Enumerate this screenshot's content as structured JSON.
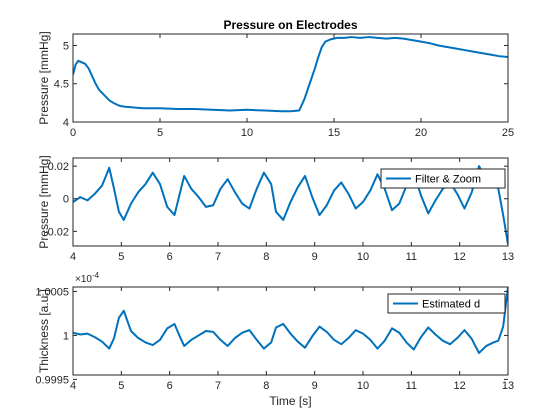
{
  "chart_data": [
    {
      "type": "line",
      "title": "Pressure on Electrodes",
      "xlabel": "",
      "ylabel": "Pressure [mmHg]",
      "xlim": [
        0,
        25
      ],
      "ylim": [
        4,
        5.15
      ],
      "xticks": [
        0,
        5,
        10,
        15,
        20,
        25
      ],
      "yticks": [
        4,
        4.5,
        5
      ],
      "ytick_labels": [
        "4",
        "4.5",
        "5"
      ],
      "grid": false,
      "color": "#0072bd",
      "series": [
        {
          "x": [
            0,
            0.15,
            0.3,
            0.5,
            0.7,
            0.9,
            1.1,
            1.3,
            1.5,
            1.8,
            2.1,
            2.4,
            2.7,
            3.0,
            3.5,
            4.0,
            4.5,
            5.0,
            6.0,
            7.0,
            8.0,
            9.0,
            10.0,
            11.0,
            12.0,
            12.5,
            13.0,
            13.3,
            13.6,
            13.9,
            14.1,
            14.3,
            14.5,
            14.8,
            15.2,
            15.6,
            16.0,
            16.5,
            17.0,
            17.5,
            18.0,
            18.5,
            19.0,
            19.5,
            20.0,
            20.5,
            21.0,
            21.5,
            22.0,
            22.5,
            23.0,
            23.5,
            24.0,
            24.5,
            25.0
          ],
          "y": [
            4.62,
            4.75,
            4.8,
            4.78,
            4.76,
            4.7,
            4.6,
            4.5,
            4.42,
            4.35,
            4.28,
            4.24,
            4.21,
            4.2,
            4.19,
            4.18,
            4.18,
            4.18,
            4.17,
            4.17,
            4.16,
            4.15,
            4.16,
            4.15,
            4.14,
            4.14,
            4.15,
            4.3,
            4.5,
            4.7,
            4.85,
            4.98,
            5.05,
            5.08,
            5.1,
            5.1,
            5.11,
            5.1,
            5.11,
            5.1,
            5.09,
            5.1,
            5.09,
            5.07,
            5.05,
            5.03,
            5.0,
            4.98,
            4.96,
            4.94,
            4.92,
            4.9,
            4.88,
            4.86,
            4.85
          ]
        }
      ]
    },
    {
      "type": "line",
      "title": "",
      "xlabel": "",
      "ylabel": "Pressure [mmHg]",
      "xlim": [
        4,
        13
      ],
      "ylim": [
        -0.029,
        0.025
      ],
      "xticks": [
        4,
        5,
        6,
        7,
        8,
        9,
        10,
        11,
        12,
        13
      ],
      "yticks": [
        -0.02,
        0,
        0.02
      ],
      "ytick_labels": [
        "-0.02",
        "0",
        "0.02"
      ],
      "grid": false,
      "legend": "top-right",
      "color": "#0072bd",
      "series": [
        {
          "name": "Filter & Zoom",
          "x": [
            4.0,
            4.15,
            4.3,
            4.45,
            4.6,
            4.75,
            4.85,
            4.95,
            5.05,
            5.2,
            5.35,
            5.5,
            5.65,
            5.8,
            5.95,
            6.1,
            6.2,
            6.3,
            6.45,
            6.6,
            6.75,
            6.9,
            7.05,
            7.2,
            7.35,
            7.5,
            7.65,
            7.8,
            7.95,
            8.1,
            8.2,
            8.35,
            8.5,
            8.65,
            8.8,
            8.95,
            9.1,
            9.25,
            9.4,
            9.55,
            9.7,
            9.85,
            10.0,
            10.15,
            10.3,
            10.45,
            10.6,
            10.75,
            10.9,
            11.05,
            11.2,
            11.35,
            11.5,
            11.65,
            11.8,
            11.95,
            12.1,
            12.25,
            12.4,
            12.55,
            12.7,
            12.8,
            12.9,
            13.0
          ],
          "y": [
            -0.002,
            0.001,
            -0.001,
            0.003,
            0.008,
            0.019,
            0.006,
            -0.008,
            -0.013,
            -0.003,
            0.004,
            0.009,
            0.016,
            0.009,
            -0.005,
            -0.01,
            0.002,
            0.014,
            0.006,
            0.001,
            -0.005,
            -0.004,
            0.006,
            0.012,
            0.004,
            -0.003,
            -0.006,
            0.006,
            0.016,
            0.009,
            -0.008,
            -0.013,
            -0.002,
            0.007,
            0.014,
            0.001,
            -0.01,
            -0.004,
            0.005,
            0.01,
            0.003,
            -0.006,
            -0.002,
            0.005,
            0.015,
            0.006,
            -0.007,
            -0.003,
            0.008,
            0.016,
            0.002,
            -0.009,
            -0.001,
            0.006,
            0.01,
            0.003,
            -0.006,
            0.004,
            0.02,
            0.012,
            0.01,
            0.006,
            -0.01,
            -0.028
          ]
        }
      ]
    },
    {
      "type": "line",
      "title": "",
      "xlabel": "Time [s]",
      "ylabel": "Thickness [a.u.]",
      "xlim": [
        4,
        13
      ],
      "ylim": [
        0.99955,
        1.00055
      ],
      "xticks": [
        4,
        5,
        6,
        7,
        8,
        9,
        10,
        11,
        12,
        13
      ],
      "yticks": [
        0.9995,
        1,
        1.0005
      ],
      "ytick_labels": [
        "0.9995",
        "1",
        "1.0005"
      ],
      "exponent_label": "×10",
      "exponent_power": "-4",
      "grid": false,
      "legend": "top-right",
      "color": "#0072bd",
      "series": [
        {
          "name": "Estimated d",
          "x": [
            4.0,
            4.15,
            4.3,
            4.45,
            4.6,
            4.75,
            4.85,
            4.95,
            5.05,
            5.2,
            5.35,
            5.5,
            5.65,
            5.8,
            5.95,
            6.1,
            6.2,
            6.3,
            6.45,
            6.6,
            6.75,
            6.9,
            7.05,
            7.2,
            7.35,
            7.5,
            7.65,
            7.8,
            7.95,
            8.1,
            8.2,
            8.35,
            8.5,
            8.65,
            8.8,
            8.95,
            9.1,
            9.25,
            9.4,
            9.55,
            9.7,
            9.85,
            10.0,
            10.15,
            10.3,
            10.45,
            10.6,
            10.75,
            10.9,
            11.05,
            11.2,
            11.35,
            11.5,
            11.65,
            11.8,
            11.95,
            12.1,
            12.25,
            12.4,
            12.55,
            12.7,
            12.8,
            12.9,
            13.0
          ],
          "y": [
            1.00003,
            1.00001,
            1.00002,
            0.99998,
            0.99993,
            0.99985,
            0.99997,
            1.0002,
            1.00028,
            1.00005,
            0.99997,
            0.99992,
            0.99989,
            0.99995,
            1.00008,
            1.00013,
            1.0,
            0.99988,
            0.99995,
            1.0,
            1.00005,
            1.00004,
            0.99995,
            0.99988,
            0.99997,
            1.00003,
            1.00006,
            0.99995,
            0.99985,
            0.99992,
            1.00009,
            1.00013,
            1.00002,
            0.99993,
            0.99986,
            0.99999,
            1.0001,
            1.00004,
            0.99995,
            0.9999,
            0.99997,
            1.00006,
            1.00002,
            0.99995,
            0.99985,
            0.99994,
            1.00008,
            1.00003,
            0.99992,
            0.99984,
            0.99998,
            1.00009,
            1.00001,
            0.99994,
            0.9999,
            0.99997,
            1.00006,
            0.99996,
            0.9998,
            0.99988,
            0.99992,
            0.99994,
            1.0001,
            1.00055
          ]
        }
      ]
    }
  ]
}
